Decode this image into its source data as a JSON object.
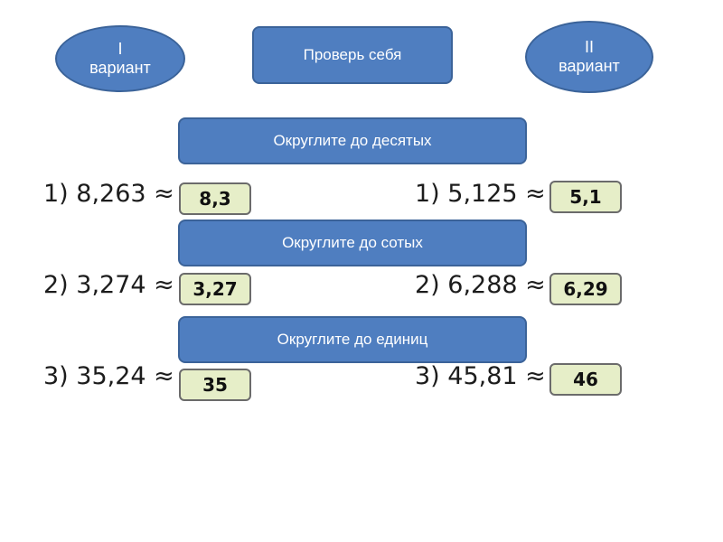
{
  "variant_1": {
    "numeral": "I",
    "word": "вариант"
  },
  "variant_2": {
    "numeral": "II",
    "word": "вариант"
  },
  "check_button": "Проверь себя",
  "tasks": [
    {
      "instruction": "Округлите до десятых",
      "left": {
        "expr": "1) 8,263 ≈",
        "answer": "8,3"
      },
      "right": {
        "expr": "1) 5,125 ≈",
        "answer": "5,1"
      }
    },
    {
      "instruction": "Округлите до сотых",
      "left": {
        "expr": "2) 3,274 ≈",
        "answer": "3,27"
      },
      "right": {
        "expr": "2) 6,288 ≈",
        "answer": "6,29"
      }
    },
    {
      "instruction": "Округлите до единиц",
      "left": {
        "expr": "3) 35,24 ≈",
        "answer": "35"
      },
      "right": {
        "expr": "3) 45,81 ≈",
        "answer": "46"
      }
    }
  ],
  "colors": {
    "button_fill": "#4f7ec0",
    "button_border": "#3b6399",
    "answer_fill": "#e6eec8"
  }
}
